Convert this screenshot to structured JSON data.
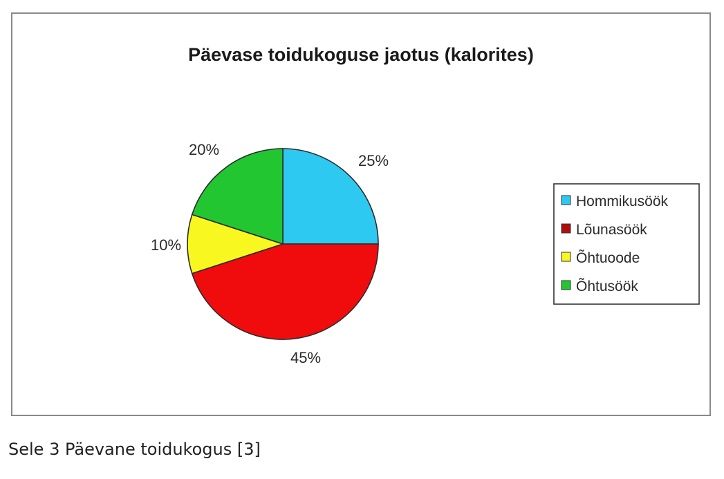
{
  "chart_data": {
    "type": "pie",
    "title": "Päevase toidukoguse jaotus (kalorites)",
    "categories": [
      "Hommikusöök",
      "Lõunasöök",
      "Õhtuoode",
      "Õhtusöök"
    ],
    "values": [
      25,
      45,
      10,
      20
    ],
    "data_labels": [
      "25%",
      "45%",
      "10%",
      "20%"
    ],
    "colors": [
      "#2ec9f0",
      "#f00c0c",
      "#f8f820",
      "#22c630"
    ],
    "legend_position": "right"
  },
  "caption": "Sele 3 Päevane toidukogus [3]"
}
